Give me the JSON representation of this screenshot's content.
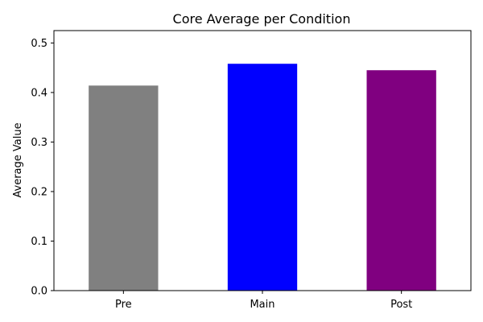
{
  "chart_data": {
    "type": "bar",
    "title": "Core Average per Condition",
    "xlabel": "",
    "ylabel": "Average Value",
    "categories": [
      "Pre",
      "Main",
      "Post"
    ],
    "values": [
      0.414,
      0.458,
      0.445
    ],
    "colors": [
      "#808080",
      "#0000ff",
      "#800080"
    ],
    "ylim": [
      0,
      0.525
    ],
    "yticks": [
      0.0,
      0.1,
      0.2,
      0.3,
      0.4,
      0.5
    ],
    "ytick_labels": [
      "0.0",
      "0.1",
      "0.2",
      "0.3",
      "0.4",
      "0.5"
    ],
    "grid": false,
    "legend": "none"
  }
}
